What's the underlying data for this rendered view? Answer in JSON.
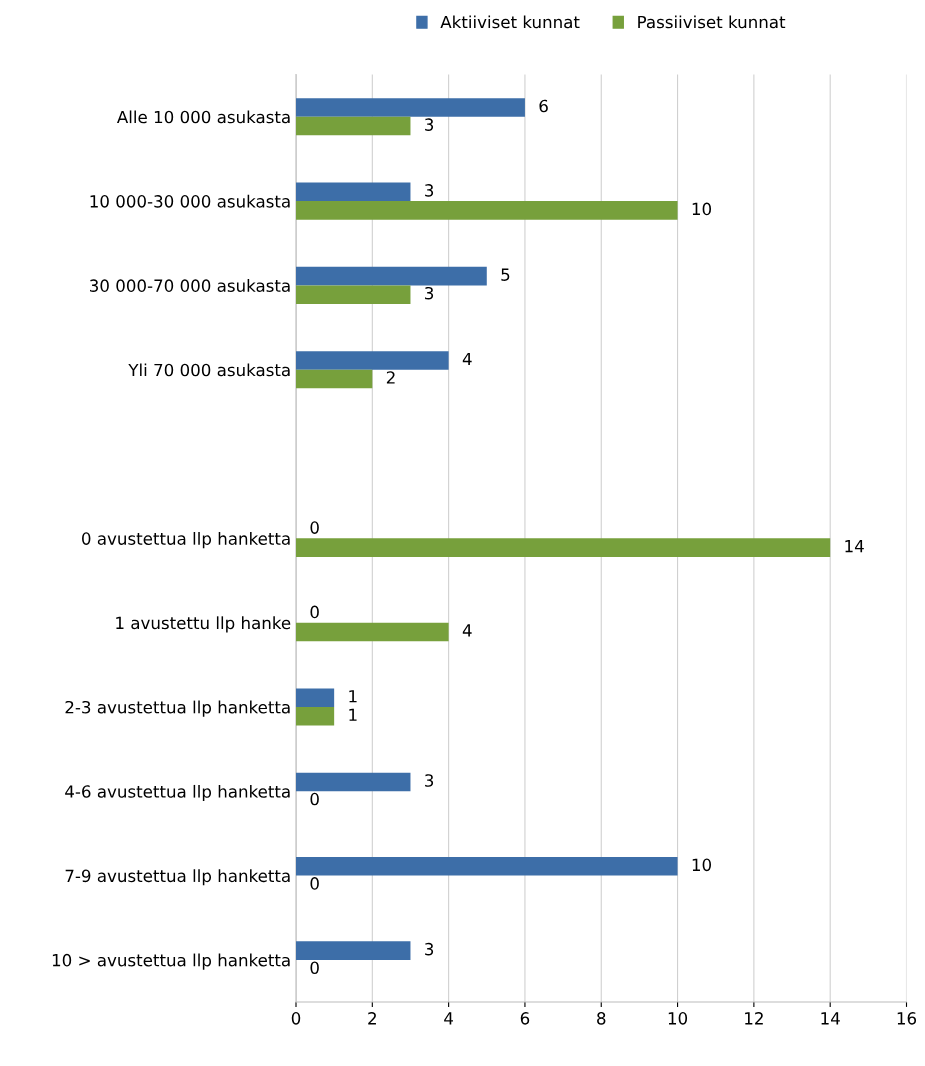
{
  "chart_data": {
    "type": "bar",
    "orientation": "horizontal",
    "categories": [
      "Alle 10 000 asukasta",
      "10 000-30 000 asukasta",
      "30 000-70 000 asukasta",
      "Yli 70 000 asukasta",
      null,
      "0 avustettua llp hanketta",
      "1 avustettu llp hanke",
      "2-3 avustettua llp hanketta",
      "4-6 avustettua llp hanketta",
      "7-9 avustettua llp hanketta",
      "10 > avustettua llp hanketta"
    ],
    "series": [
      {
        "name": "Aktiiviset kunnat",
        "color": "#3d6ea8",
        "values": [
          6,
          3,
          5,
          4,
          null,
          0,
          0,
          1,
          3,
          10,
          3
        ]
      },
      {
        "name": "Passiiviset kunnat",
        "color": "#77a03c",
        "values": [
          3,
          10,
          3,
          2,
          null,
          14,
          4,
          1,
          0,
          0,
          0
        ]
      }
    ],
    "xlim": [
      0,
      16
    ],
    "xticks": [
      0,
      2,
      4,
      6,
      8,
      10,
      12,
      14,
      16
    ],
    "grid": "x",
    "legend": "top",
    "data_labels": true
  }
}
